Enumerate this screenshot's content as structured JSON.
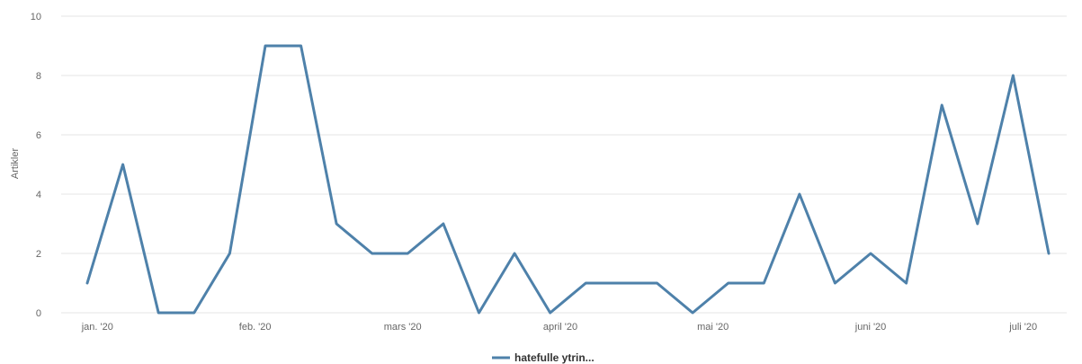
{
  "chart_data": {
    "type": "line",
    "ylabel": "Artikler",
    "ylim": [
      0,
      10
    ],
    "yticks": [
      0,
      2,
      4,
      6,
      8,
      10
    ],
    "grid": true,
    "legend_position": "bottom-center",
    "xtick_labels": [
      {
        "label": "jan. '20",
        "x": "2020-01-01"
      },
      {
        "label": "feb. '20",
        "x": "2020-02-01"
      },
      {
        "label": "mars '20",
        "x": "2020-03-01"
      },
      {
        "label": "april '20",
        "x": "2020-04-01"
      },
      {
        "label": "mai '20",
        "x": "2020-05-01"
      },
      {
        "label": "juni '20",
        "x": "2020-06-01"
      },
      {
        "label": "juli '20",
        "x": "2020-07-01"
      }
    ],
    "series": [
      {
        "name": "hatefulle ytrin...",
        "color": "#4e81aa",
        "points": [
          {
            "x": "2019-12-30",
            "y": 1
          },
          {
            "x": "2020-01-06",
            "y": 5
          },
          {
            "x": "2020-01-13",
            "y": 0
          },
          {
            "x": "2020-01-20",
            "y": 0
          },
          {
            "x": "2020-01-27",
            "y": 2
          },
          {
            "x": "2020-02-03",
            "y": 9
          },
          {
            "x": "2020-02-10",
            "y": 9
          },
          {
            "x": "2020-02-17",
            "y": 3
          },
          {
            "x": "2020-02-24",
            "y": 2
          },
          {
            "x": "2020-03-02",
            "y": 2
          },
          {
            "x": "2020-03-09",
            "y": 3
          },
          {
            "x": "2020-03-16",
            "y": 0
          },
          {
            "x": "2020-03-23",
            "y": 2
          },
          {
            "x": "2020-03-30",
            "y": 0
          },
          {
            "x": "2020-04-06",
            "y": 1
          },
          {
            "x": "2020-04-13",
            "y": 1
          },
          {
            "x": "2020-04-20",
            "y": 1
          },
          {
            "x": "2020-04-27",
            "y": 0
          },
          {
            "x": "2020-05-04",
            "y": 1
          },
          {
            "x": "2020-05-11",
            "y": 1
          },
          {
            "x": "2020-05-18",
            "y": 4
          },
          {
            "x": "2020-05-25",
            "y": 1
          },
          {
            "x": "2020-06-01",
            "y": 2
          },
          {
            "x": "2020-06-08",
            "y": 1
          },
          {
            "x": "2020-06-15",
            "y": 7
          },
          {
            "x": "2020-06-22",
            "y": 3
          },
          {
            "x": "2020-06-29",
            "y": 8
          },
          {
            "x": "2020-07-06",
            "y": 2
          }
        ]
      }
    ]
  }
}
